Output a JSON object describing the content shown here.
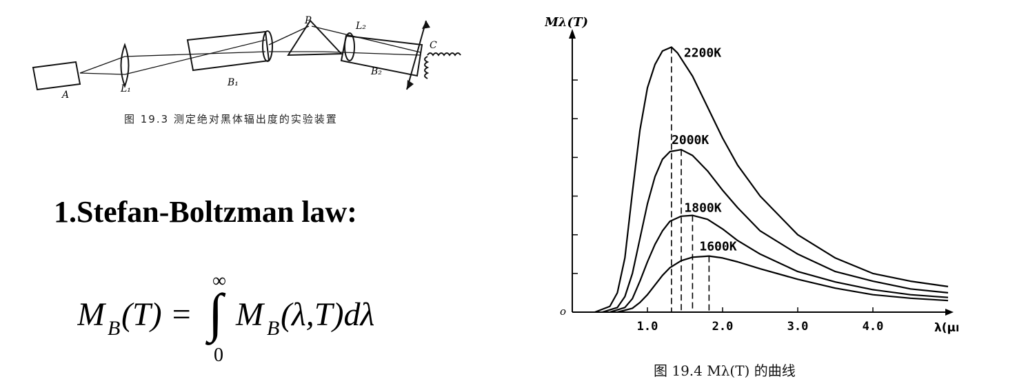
{
  "figure1": {
    "caption": "图 19.3  测定绝对黑体辐出度的实验装置",
    "labels": {
      "A": "A",
      "L1": "L₁",
      "B1": "B₁",
      "P": "P",
      "L2": "L₂",
      "B2": "B₂",
      "C": "C"
    }
  },
  "law": {
    "heading": "1.Stefan-Boltzman  law:",
    "formula": {
      "lhs": "M",
      "lhs_sub": "B",
      "lhs_arg": "(T) =",
      "upper": "∞",
      "lower": "0",
      "integrand": "M",
      "integrand_sub": "B",
      "integrand_arg": "(λ,T)dλ"
    }
  },
  "chart_data": {
    "type": "line",
    "ylabel": "Mλ(T)",
    "xlabel": "λ(μm)",
    "origin_label": "o",
    "xlim": [
      0,
      5.0
    ],
    "ylim": [
      0,
      7
    ],
    "x_ticks": [
      1.0,
      2.0,
      3.0,
      4.0
    ],
    "x_tick_labels": [
      "1.0",
      "2.0",
      "3.0",
      "4.0"
    ],
    "y_ticks": [
      1,
      2,
      3,
      4,
      5,
      6
    ],
    "series": [
      {
        "name": "2200K",
        "peak_x": 1.32,
        "x": [
          0.3,
          0.5,
          0.6,
          0.7,
          0.8,
          0.9,
          1.0,
          1.1,
          1.2,
          1.32,
          1.4,
          1.6,
          1.8,
          2.0,
          2.2,
          2.5,
          3.0,
          3.5,
          4.0,
          4.5,
          5.0
        ],
        "y": [
          0,
          0.15,
          0.5,
          1.4,
          3.1,
          4.7,
          5.8,
          6.4,
          6.75,
          6.85,
          6.7,
          6.1,
          5.3,
          4.5,
          3.8,
          3.0,
          2.0,
          1.4,
          1.0,
          0.8,
          0.66
        ]
      },
      {
        "name": "2000K",
        "peak_x": 1.45,
        "x": [
          0.4,
          0.6,
          0.7,
          0.8,
          0.9,
          1.0,
          1.1,
          1.2,
          1.3,
          1.45,
          1.6,
          1.8,
          2.0,
          2.2,
          2.5,
          3.0,
          3.5,
          4.0,
          4.5,
          5.0
        ],
        "y": [
          0,
          0.12,
          0.4,
          1.0,
          1.9,
          2.8,
          3.5,
          3.95,
          4.15,
          4.2,
          4.05,
          3.65,
          3.15,
          2.7,
          2.1,
          1.5,
          1.05,
          0.8,
          0.6,
          0.5
        ]
      },
      {
        "name": "1800K",
        "peak_x": 1.6,
        "x": [
          0.5,
          0.7,
          0.8,
          0.9,
          1.0,
          1.1,
          1.2,
          1.3,
          1.45,
          1.6,
          1.8,
          2.0,
          2.2,
          2.5,
          3.0,
          3.5,
          4.0,
          4.5,
          5.0
        ],
        "y": [
          0,
          0.12,
          0.35,
          0.8,
          1.3,
          1.75,
          2.1,
          2.35,
          2.48,
          2.5,
          2.4,
          2.15,
          1.85,
          1.5,
          1.05,
          0.78,
          0.58,
          0.45,
          0.38
        ]
      },
      {
        "name": "1600K",
        "peak_x": 1.82,
        "x": [
          0.6,
          0.8,
          0.9,
          1.0,
          1.1,
          1.2,
          1.3,
          1.45,
          1.6,
          1.82,
          2.0,
          2.2,
          2.5,
          3.0,
          3.5,
          4.0,
          4.5,
          5.0
        ],
        "y": [
          0,
          0.1,
          0.25,
          0.45,
          0.7,
          0.95,
          1.15,
          1.33,
          1.42,
          1.45,
          1.4,
          1.3,
          1.12,
          0.85,
          0.62,
          0.45,
          0.36,
          0.3
        ]
      }
    ]
  },
  "figure2": {
    "caption": "图 19.4  Mλ(T) 的曲线"
  }
}
